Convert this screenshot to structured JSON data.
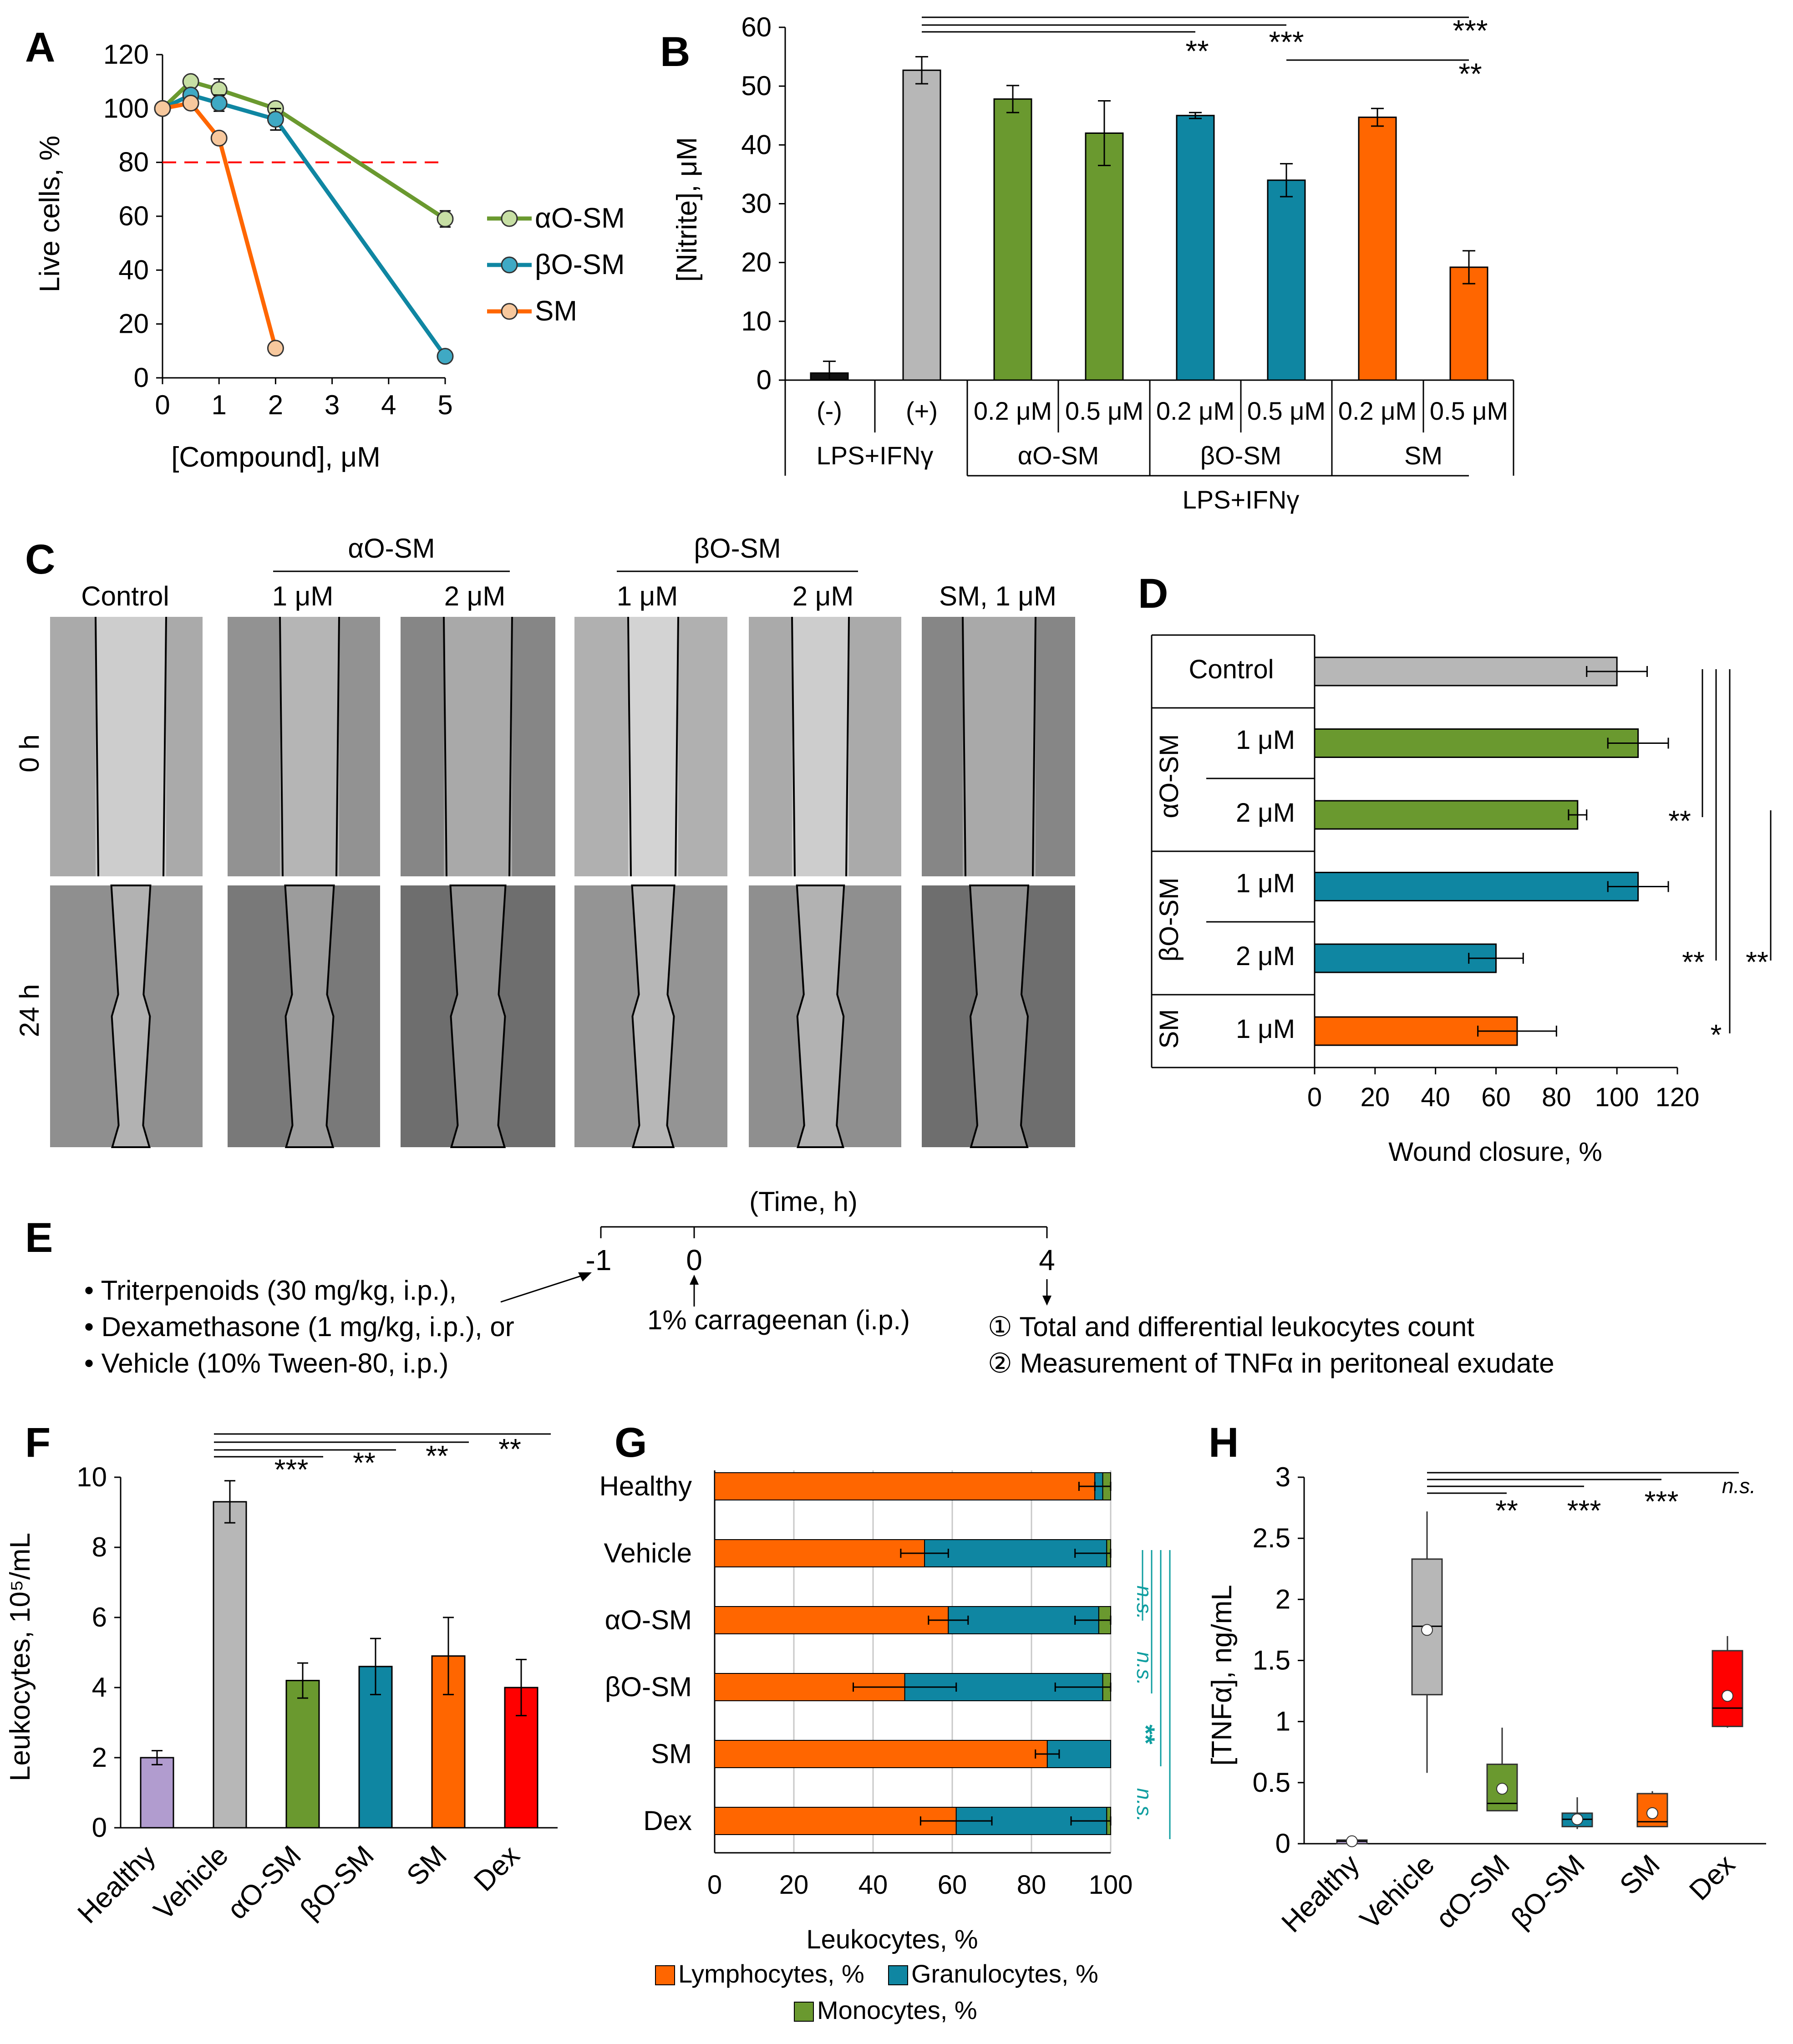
{
  "colors": {
    "control": "#b7b7b7",
    "alpha": "#6a992f",
    "beta": "#0f86a2",
    "sm": "#ff6600",
    "healthy": "#b19ccf",
    "dex": "#ff0000",
    "black": "#111111",
    "alpha_marker": "#c7dfa4",
    "beta_marker": "#3fa9c4",
    "sm_marker": "#f7c89d",
    "lymph": "#ff6600",
    "gran": "#0f86a2",
    "mono": "#6a992f",
    "teal_text": "#0f9ea0"
  },
  "panels": {
    "A": {
      "letter": "A",
      "chart_data": {
        "type": "line",
        "xlabel": "[Compound], μM",
        "ylabel": "Live cells, %",
        "xlim": [
          0,
          5
        ],
        "ylim": [
          0,
          120
        ],
        "x_ticks": [
          "0",
          "1",
          "2",
          "3",
          "4",
          "5"
        ],
        "y_ticks": [
          "0",
          "20",
          "40",
          "60",
          "80",
          "100",
          "120"
        ],
        "threshold": 80,
        "series": [
          {
            "name": "αO-SM",
            "x": [
              0,
              0.5,
              1,
              2,
              5
            ],
            "y": [
              100,
              110,
              107,
              100,
              59
            ],
            "err": [
              2,
              2,
              4,
              2,
              3
            ]
          },
          {
            "name": "βO-SM",
            "x": [
              0,
              0.5,
              1,
              2,
              5
            ],
            "y": [
              100,
              105,
              102,
              96,
              8
            ],
            "err": [
              2,
              2,
              3,
              4,
              1
            ]
          },
          {
            "name": "SM",
            "x": [
              0,
              0.5,
              1,
              2
            ],
            "y": [
              100,
              102,
              89,
              11
            ],
            "err": [
              1,
              1,
              1,
              1
            ]
          }
        ],
        "legend": [
          "αO-SM",
          "βO-SM",
          "SM"
        ]
      }
    },
    "B": {
      "letter": "B",
      "chart_data": {
        "type": "bar",
        "ylabel": "[Nitrite], μM",
        "ylim": [
          0,
          60
        ],
        "y_ticks": [
          "0",
          "10",
          "20",
          "30",
          "40",
          "50",
          "60"
        ],
        "categories": [
          "(-)",
          "(+)",
          "0.2 μM",
          "0.5 μM",
          "0.2 μM",
          "0.5 μM",
          "0.2 μM",
          "0.5 μM"
        ],
        "values": [
          1.2,
          52.7,
          47.8,
          42.0,
          45.0,
          34.0,
          44.7,
          19.2
        ],
        "errors": [
          2.0,
          2.3,
          2.3,
          5.5,
          0.5,
          2.8,
          1.5,
          2.8
        ],
        "groups": [
          "LPS+IFNγ",
          "αO-SM",
          "βO-SM",
          "SM"
        ],
        "group_bottom": "LPS+IFNγ",
        "sig": [
          "**",
          "***",
          "***",
          "**"
        ]
      }
    },
    "C": {
      "letter": "C",
      "column_labels": [
        "Control",
        "1 μM",
        "2 μM",
        "1 μM",
        "2 μM",
        "SM, 1 μM"
      ],
      "group_labels": [
        "αO-SM",
        "βO-SM"
      ],
      "row_labels": [
        "0 h",
        "24 h"
      ]
    },
    "D": {
      "letter": "D",
      "chart_data": {
        "type": "bar",
        "orientation": "horizontal",
        "xlabel": "Wound closure, %",
        "xlim": [
          0,
          120
        ],
        "x_ticks": [
          "0",
          "20",
          "40",
          "60",
          "80",
          "100",
          "120"
        ],
        "rows": [
          "Control",
          "1 μM",
          "2 μM",
          "1 μM",
          "2 μM",
          "1 μM"
        ],
        "groups": [
          "αO-SM",
          "βO-SM",
          "SM"
        ],
        "values": [
          100,
          107,
          87,
          107,
          60,
          67
        ],
        "errors": [
          10,
          10,
          3,
          10,
          9,
          13
        ],
        "sig": [
          "**",
          "**",
          "**",
          "*"
        ]
      }
    },
    "E": {
      "letter": "E",
      "time_title": "(Time, h)",
      "ticks": [
        "-1",
        "0",
        "4"
      ],
      "treatments": [
        "• Triterpenoids (30 mg/kg, i.p.),",
        "• Dexamethasone (1 mg/kg, i.p.), or",
        "• Vehicle (10% Tween-80, i.p.)"
      ],
      "carrageenan": "1% carrageenan (i.p.)",
      "readouts": [
        "① Total and differential leukocytes count",
        "② Measurement of TNFα in peritoneal exudate"
      ]
    },
    "F": {
      "letter": "F",
      "chart_data": {
        "type": "bar",
        "ylabel": "Leukocytes, 10⁵/mL",
        "ylim": [
          0,
          10
        ],
        "y_ticks": [
          "0",
          "2",
          "4",
          "6",
          "8",
          "10"
        ],
        "categories": [
          "Healthy",
          "Vehicle",
          "αO-SM",
          "βO-SM",
          "SM",
          "Dex"
        ],
        "values": [
          2.0,
          9.3,
          4.2,
          4.6,
          4.9,
          4.0
        ],
        "errors": [
          0.2,
          0.6,
          0.5,
          0.8,
          1.1,
          0.8
        ],
        "sig": [
          "***",
          "**",
          "**",
          "**"
        ]
      }
    },
    "G": {
      "letter": "G",
      "chart_data": {
        "type": "bar",
        "orientation": "horizontal",
        "stacked": true,
        "xlabel": "Leukocytes, %",
        "xlim": [
          0,
          100
        ],
        "x_ticks": [
          "0",
          "20",
          "40",
          "60",
          "80",
          "100"
        ],
        "categories": [
          "Healthy",
          "Vehicle",
          "αO-SM",
          "βO-SM",
          "SM",
          "Dex"
        ],
        "series": [
          {
            "name": "Lymphocytes, %",
            "values": [
              96,
              53,
              59,
              48,
              84,
              61
            ]
          },
          {
            "name": "Granulocytes, %",
            "values": [
              2,
              46,
              38,
              50,
              16,
              38
            ]
          },
          {
            "name": "Monocytes, %",
            "values": [
              2,
              1,
              3,
              2,
              0,
              1
            ]
          }
        ],
        "sig": [
          "n.s.",
          "n.s.",
          "**",
          "n.s."
        ]
      }
    },
    "H": {
      "letter": "H",
      "chart_data": {
        "type": "box",
        "ylabel": "[TNFα], ng/mL",
        "ylim": [
          0,
          3
        ],
        "y_ticks": [
          "0",
          "0.5",
          "1",
          "1.5",
          "2",
          "2.5",
          "3"
        ],
        "categories": [
          "Healthy",
          "Vehicle",
          "αO-SM",
          "βO-SM",
          "SM",
          "Dex"
        ],
        "boxes": [
          {
            "min": 0.0,
            "q1": 0.0,
            "median": 0.02,
            "q3": 0.03,
            "max": 0.03,
            "mean": 0.02
          },
          {
            "min": 0.58,
            "q1": 1.22,
            "median": 1.78,
            "q3": 2.33,
            "max": 2.72,
            "mean": 1.75
          },
          {
            "min": 0.27,
            "q1": 0.27,
            "median": 0.33,
            "q3": 0.65,
            "max": 0.95,
            "mean": 0.45
          },
          {
            "min": 0.12,
            "q1": 0.14,
            "median": 0.2,
            "q3": 0.25,
            "max": 0.38,
            "mean": 0.2
          },
          {
            "min": 0.14,
            "q1": 0.14,
            "median": 0.18,
            "q3": 0.41,
            "max": 0.43,
            "mean": 0.25
          },
          {
            "min": 0.95,
            "q1": 0.96,
            "median": 1.11,
            "q3": 1.58,
            "max": 1.7,
            "mean": 1.21
          }
        ],
        "sig": [
          "**",
          "***",
          "***",
          "n.s."
        ]
      }
    }
  }
}
